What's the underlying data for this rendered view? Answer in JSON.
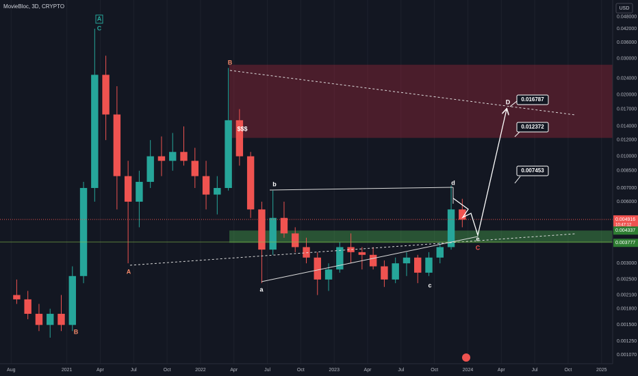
{
  "chart_data": {
    "type": "candlestick",
    "title": "MovieBloc, 3D, CRYPTO",
    "currency": "USD",
    "log_scale": true,
    "up_color": "#26a69a",
    "down_color": "#ef5350",
    "xlim": [
      "2020-07",
      "2025-02"
    ],
    "xticks": [
      {
        "value": "2020-08",
        "label": "Aug"
      },
      {
        "value": "2021-01",
        "label": "2021"
      },
      {
        "value": "2021-04",
        "label": "Apr"
      },
      {
        "value": "2021-07",
        "label": "Jul"
      },
      {
        "value": "2021-10",
        "label": "Oct"
      },
      {
        "value": "2022-01",
        "label": "2022"
      },
      {
        "value": "2022-04",
        "label": "Apr"
      },
      {
        "value": "2022-07",
        "label": "Jul"
      },
      {
        "value": "2022-10",
        "label": "Oct"
      },
      {
        "value": "2023-01",
        "label": "2023"
      },
      {
        "value": "2023-04",
        "label": "Apr"
      },
      {
        "value": "2023-07",
        "label": "Jul"
      },
      {
        "value": "2023-10",
        "label": "Oct"
      },
      {
        "value": "2024-01",
        "label": "2024"
      },
      {
        "value": "2024-04",
        "label": "Apr"
      },
      {
        "value": "2024-07",
        "label": "Jul"
      },
      {
        "value": "2024-10",
        "label": "Oct"
      },
      {
        "value": "2025-01",
        "label": "2025"
      }
    ],
    "ylim": [
      0.00097,
      0.058
    ],
    "yticks": [
      {
        "value": 0.048,
        "label": "0.048000"
      },
      {
        "value": 0.042,
        "label": "0.042000"
      },
      {
        "value": 0.036,
        "label": "0.036000"
      },
      {
        "value": 0.03,
        "label": "0.030000"
      },
      {
        "value": 0.024,
        "label": "0.024000"
      },
      {
        "value": 0.02,
        "label": "0.020000"
      },
      {
        "value": 0.017,
        "label": "0.017000"
      },
      {
        "value": 0.014,
        "label": "0.014000"
      },
      {
        "value": 0.012,
        "label": "0.012000"
      },
      {
        "value": 0.01,
        "label": "0.010000"
      },
      {
        "value": 0.0085,
        "label": "0.008500"
      },
      {
        "value": 0.007,
        "label": "0.007000"
      },
      {
        "value": 0.006,
        "label": "0.006000"
      },
      {
        "value": 0.003,
        "label": "0.003000"
      },
      {
        "value": 0.0025,
        "label": "0.002500"
      },
      {
        "value": 0.0021,
        "label": "0.002100"
      },
      {
        "value": 0.0018,
        "label": "0.001800"
      },
      {
        "value": 0.0015,
        "label": "0.001500"
      },
      {
        "value": 0.00125,
        "label": "0.001250"
      },
      {
        "value": 0.00107,
        "label": "0.001070"
      }
    ],
    "x": [
      "2020-08",
      "2020-09",
      "2020-10",
      "2020-11",
      "2020-12",
      "2021-01",
      "2021-02",
      "2021-03",
      "2021-04",
      "2021-05",
      "2021-06",
      "2021-07",
      "2021-08",
      "2021-09",
      "2021-10",
      "2021-11",
      "2021-12",
      "2022-01",
      "2022-02",
      "2022-03",
      "2022-04",
      "2022-05",
      "2022-06",
      "2022-07",
      "2022-08",
      "2022-09",
      "2022-10",
      "2022-11",
      "2022-12",
      "2023-01",
      "2023-02",
      "2023-03",
      "2023-04",
      "2023-05",
      "2023-06",
      "2023-07",
      "2023-08",
      "2023-09",
      "2023-10",
      "2023-11",
      "2023-12"
    ],
    "open": [
      0.0021,
      0.002,
      0.0017,
      0.0015,
      0.0017,
      0.0015,
      0.0026,
      0.007,
      0.025,
      0.016,
      0.008,
      0.006,
      0.0075,
      0.01,
      0.0095,
      0.0105,
      0.0095,
      0.008,
      0.0065,
      0.007,
      0.015,
      0.01,
      0.0055,
      0.0035,
      0.005,
      0.0042,
      0.0036,
      0.0032,
      0.0025,
      0.0028,
      0.0036,
      0.0034,
      0.0033,
      0.0029,
      0.0025,
      0.003,
      0.0032,
      0.0027,
      0.0032,
      0.0036,
      0.0055
    ],
    "high": [
      0.0025,
      0.0022,
      0.0019,
      0.0018,
      0.0021,
      0.0029,
      0.0075,
      0.042,
      0.031,
      0.022,
      0.0095,
      0.0085,
      0.012,
      0.0125,
      0.013,
      0.014,
      0.011,
      0.0095,
      0.008,
      0.027,
      0.017,
      0.0105,
      0.006,
      0.0068,
      0.006,
      0.0045,
      0.004,
      0.0034,
      0.003,
      0.0038,
      0.0042,
      0.0036,
      0.0036,
      0.0031,
      0.0032,
      0.0034,
      0.0033,
      0.0034,
      0.0038,
      0.0072,
      0.0062
    ],
    "low": [
      0.0019,
      0.0016,
      0.0014,
      0.0013,
      0.0014,
      0.0014,
      0.0024,
      0.006,
      0.012,
      0.0055,
      0.003,
      0.0045,
      0.007,
      0.008,
      0.0085,
      0.009,
      0.007,
      0.0055,
      0.0052,
      0.0068,
      0.009,
      0.005,
      0.0024,
      0.0033,
      0.004,
      0.0034,
      0.003,
      0.0021,
      0.0022,
      0.0027,
      0.003,
      0.0028,
      0.0028,
      0.0023,
      0.0024,
      0.0026,
      0.0024,
      0.0026,
      0.003,
      0.0035,
      0.0045
    ],
    "close": [
      0.002,
      0.0017,
      0.0015,
      0.0017,
      0.0015,
      0.0026,
      0.007,
      0.025,
      0.016,
      0.008,
      0.006,
      0.0075,
      0.01,
      0.0095,
      0.0105,
      0.0095,
      0.008,
      0.0065,
      0.007,
      0.015,
      0.01,
      0.0055,
      0.0035,
      0.005,
      0.0042,
      0.0036,
      0.0032,
      0.0025,
      0.0028,
      0.0036,
      0.0034,
      0.0033,
      0.0029,
      0.0025,
      0.003,
      0.0032,
      0.0027,
      0.0032,
      0.0036,
      0.0055,
      0.0049
    ],
    "resistance_zone": [
      0.0123,
      0.028
    ],
    "support_zone": [
      0.003777,
      0.004337
    ],
    "support_labels": [
      0.004337,
      0.003777
    ],
    "last_price": 0.004916,
    "countdown": "10:47:12",
    "targets": [
      0.016787,
      0.012372,
      0.007453
    ],
    "annotations": [
      "A",
      "C",
      "B",
      "A",
      "B",
      "$$$",
      "a",
      "b",
      "c",
      "d",
      "e",
      "C",
      "D"
    ]
  }
}
